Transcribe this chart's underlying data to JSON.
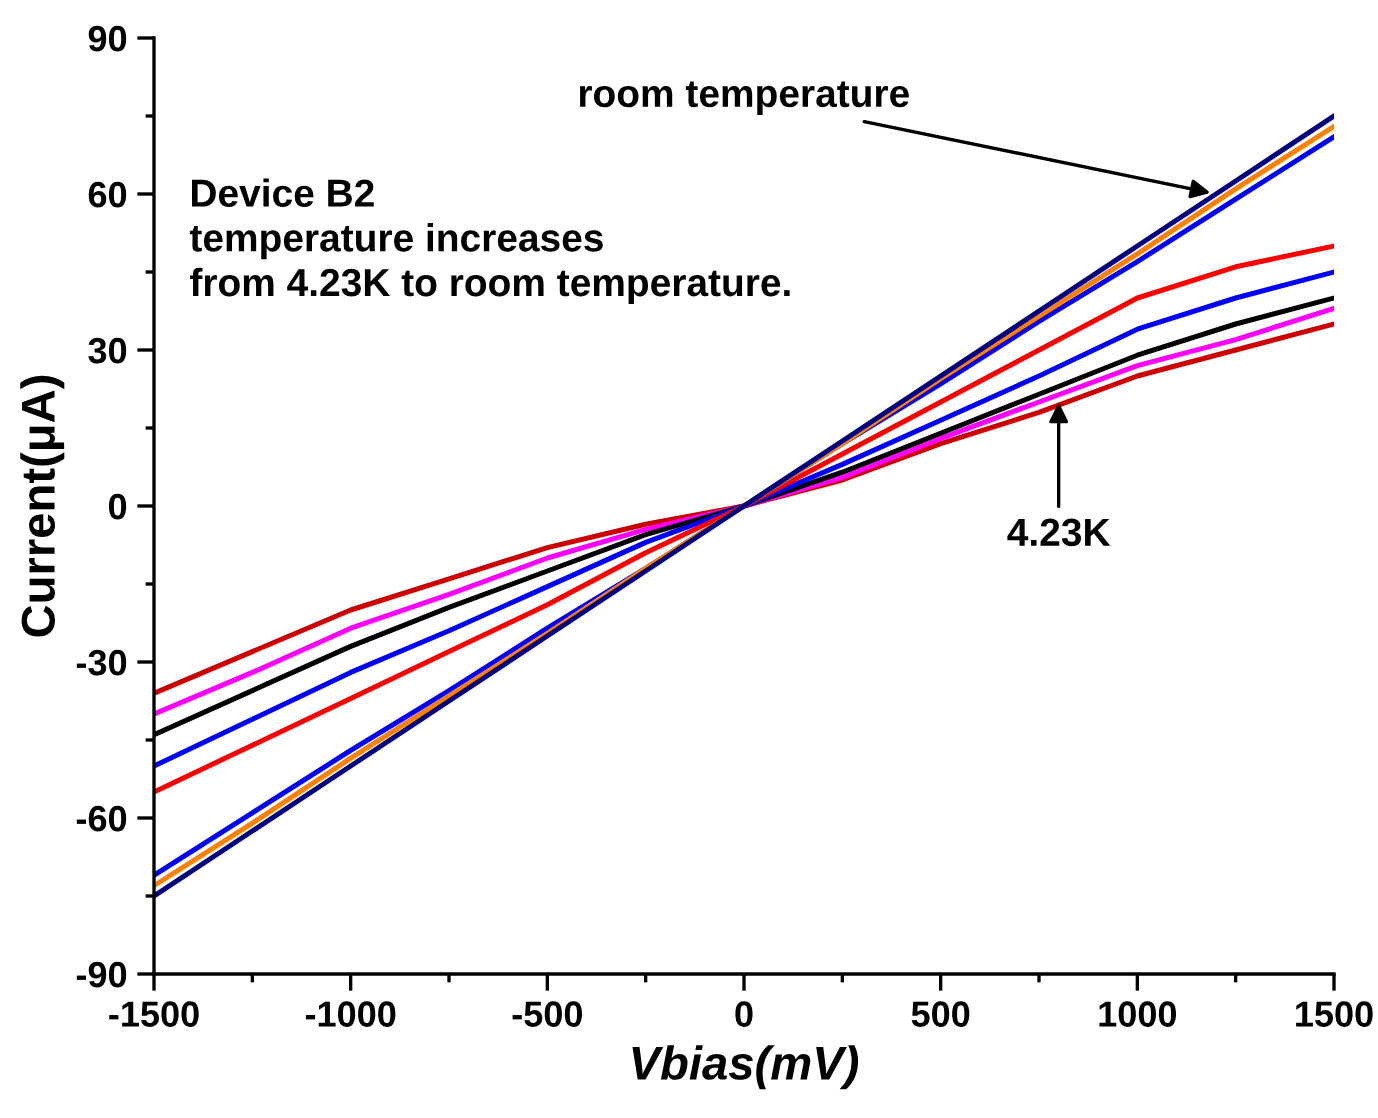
{
  "chart_data": {
    "type": "line",
    "xlabel": "Vbias(mV)",
    "ylabel": "Current(μA)",
    "xlim": [
      -1500,
      1500
    ],
    "ylim": [
      -90,
      90
    ],
    "xticks": [
      -1500,
      -1000,
      -500,
      0,
      500,
      1000,
      1500
    ],
    "yticks": [
      -90,
      -60,
      -30,
      0,
      30,
      60,
      90
    ],
    "grid": false,
    "legend": false,
    "marker": "none",
    "line_style": "solid",
    "x": [
      -1500,
      -1250,
      -1000,
      -750,
      -500,
      -250,
      0,
      250,
      500,
      750,
      1000,
      1250,
      1500
    ],
    "series": [
      {
        "color": "#cc0000",
        "values": [
          -36,
          -28,
          -20,
          -14,
          -8,
          -3.5,
          0,
          5,
          12,
          18,
          25,
          30,
          35
        ]
      },
      {
        "color": "#ff00ff",
        "values": [
          -40,
          -32,
          -23.5,
          -17,
          -10,
          -4.5,
          0,
          5.5,
          13,
          20,
          27,
          32,
          38
        ]
      },
      {
        "color": "#000000",
        "values": [
          -44,
          -35.5,
          -27,
          -19.5,
          -12.5,
          -5.5,
          0,
          6.5,
          14,
          21.5,
          29,
          35,
          40
        ]
      },
      {
        "color": "#0000ff",
        "values": [
          -50,
          -41,
          -32,
          -24,
          -15.5,
          -7,
          0,
          8,
          16.5,
          25,
          34,
          40,
          45
        ]
      },
      {
        "color": "#ff0000",
        "values": [
          -55,
          -46,
          -37,
          -28,
          -19,
          -9,
          0,
          10,
          20,
          30,
          40,
          46,
          50
        ]
      },
      {
        "color": "#0000ff",
        "values": [
          -71,
          -59,
          -47,
          -35.5,
          -23.5,
          -12,
          0,
          12,
          23.5,
          35.5,
          47,
          59,
          71
        ]
      },
      {
        "color": "#ff8000",
        "values": [
          -73,
          -61,
          -48.5,
          -36.5,
          -24.5,
          -12,
          0,
          12,
          24.5,
          36.5,
          48.5,
          61,
          73
        ]
      },
      {
        "color": "#000080",
        "values": [
          -75,
          -62.5,
          -50,
          -37.5,
          -25,
          -12.5,
          0,
          12.5,
          25,
          37.5,
          50,
          62.5,
          75
        ]
      }
    ],
    "annotations": [
      "Device B2\ntemperature increases\nfrom 4.23K to room temperature.",
      {
        "text": "room temperature",
        "x": 1200,
        "y": 60
      },
      {
        "text": "4.23K",
        "x": 800,
        "y": 21
      }
    ]
  }
}
